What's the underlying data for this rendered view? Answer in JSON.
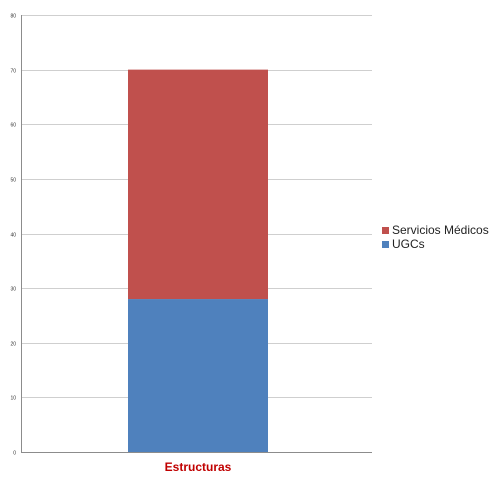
{
  "chart_data": {
    "type": "bar",
    "stacked": true,
    "categories": [
      "Estructuras"
    ],
    "series": [
      {
        "name": "UGCs",
        "values": [
          28
        ],
        "color": "#4F81BD"
      },
      {
        "name": "Servicios Médicos",
        "values": [
          42
        ],
        "color": "#C0504D"
      }
    ],
    "ylim": [
      0,
      80
    ],
    "y_ticks": [
      0,
      10,
      20,
      30,
      40,
      50,
      60,
      70,
      80
    ],
    "grid": true,
    "legend_position": "right",
    "legend_order": [
      "Servicios Médicos",
      "UGCs"
    ],
    "category_label_color": "#C00000"
  }
}
